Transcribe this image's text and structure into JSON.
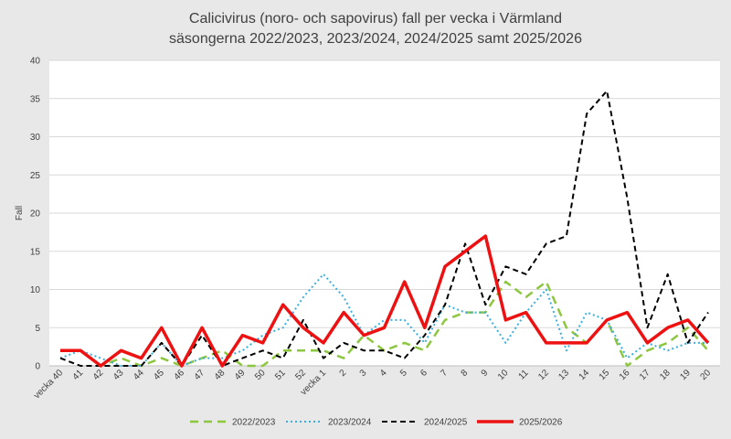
{
  "chart_data": {
    "type": "line",
    "title": "Calicivirus (noro- och sapovirus) fall per vecka i Värmland",
    "subtitle": "säsongerna 2022/2023, 2023/2024, 2024/2025 samt 2025/2026",
    "xlabel": "",
    "ylabel": "Fall",
    "ylim": [
      0,
      40
    ],
    "yticks": [
      0,
      5,
      10,
      15,
      20,
      25,
      30,
      35,
      40
    ],
    "grid": true,
    "legend_position": "bottom",
    "categories": [
      "vecka 40",
      "41",
      "42",
      "43",
      "44",
      "45",
      "46",
      "47",
      "48",
      "49",
      "50",
      "51",
      "52",
      "vecka 1",
      "2",
      "3",
      "4",
      "5",
      "6",
      "7",
      "8",
      "9",
      "10",
      "11",
      "12",
      "13",
      "14",
      "15",
      "16",
      "17",
      "18",
      "19",
      "20"
    ],
    "series": [
      {
        "name": "2022/2023",
        "color": "#8dc63f",
        "dash": "long-dash",
        "values": [
          2,
          2,
          0,
          1,
          0,
          1,
          0,
          1,
          2,
          0,
          0,
          2,
          2,
          2,
          1,
          4,
          2,
          3,
          2,
          6,
          7,
          7,
          11,
          9,
          11,
          5,
          3,
          6,
          0,
          2,
          3,
          5,
          2
        ]
      },
      {
        "name": "2023/2024",
        "color": "#3aaee0",
        "dash": "dotted",
        "values": [
          1,
          2,
          1,
          0,
          0,
          3,
          0,
          1,
          1,
          2,
          4,
          5,
          9,
          12,
          9,
          4,
          6,
          6,
          3,
          8,
          7,
          7,
          3,
          7,
          10,
          2,
          7,
          6,
          1,
          3,
          2,
          3,
          3
        ]
      },
      {
        "name": "2024/2025",
        "color": "#000000",
        "dash": "dashed",
        "values": [
          1,
          0,
          0,
          0,
          0,
          3,
          0,
          4,
          0,
          1,
          2,
          1,
          6,
          1,
          3,
          2,
          2,
          1,
          4,
          8,
          16,
          8,
          13,
          12,
          16,
          17,
          33,
          36,
          22,
          5,
          12,
          3,
          7
        ]
      },
      {
        "name": "2025/2026",
        "color": "#ee1111",
        "dash": "solid",
        "values": [
          2,
          2,
          0,
          2,
          1,
          5,
          0,
          5,
          0,
          4,
          3,
          8,
          5,
          3,
          7,
          4,
          5,
          11,
          5,
          13,
          15,
          17,
          6,
          7,
          3,
          3,
          3,
          6,
          7,
          3,
          5,
          6,
          3
        ]
      }
    ]
  }
}
